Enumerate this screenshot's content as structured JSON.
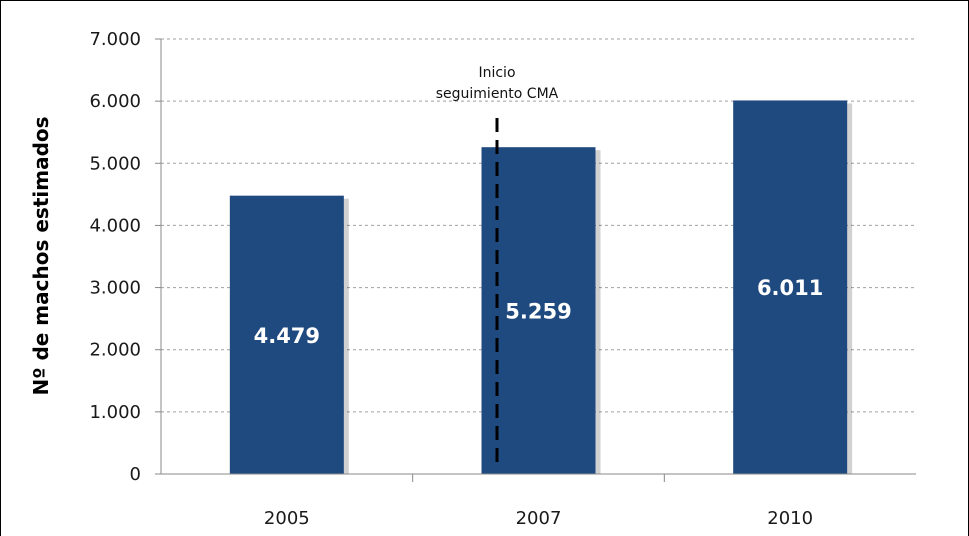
{
  "chart_data": {
    "type": "bar",
    "categories": [
      "2005",
      "2007",
      "2010"
    ],
    "values": [
      4479,
      5259,
      6011
    ],
    "data_labels": [
      "4.479",
      "5.259",
      "6.011"
    ],
    "ylabel": "Nº de machos estimados",
    "xlabel": "",
    "ylim": [
      0,
      7000
    ],
    "yticks": [
      0,
      1000,
      2000,
      3000,
      4000,
      5000,
      6000,
      7000
    ],
    "ytick_labels": [
      "0",
      "1.000",
      "2.000",
      "3.000",
      "4.000",
      "5.000",
      "6.000",
      "7.000"
    ],
    "grid": true,
    "bar_color": "#1f4a7f",
    "annotation": {
      "lines": [
        "Inicio",
        "seguimiento CMA"
      ],
      "between": [
        "2005",
        "2007"
      ]
    }
  }
}
